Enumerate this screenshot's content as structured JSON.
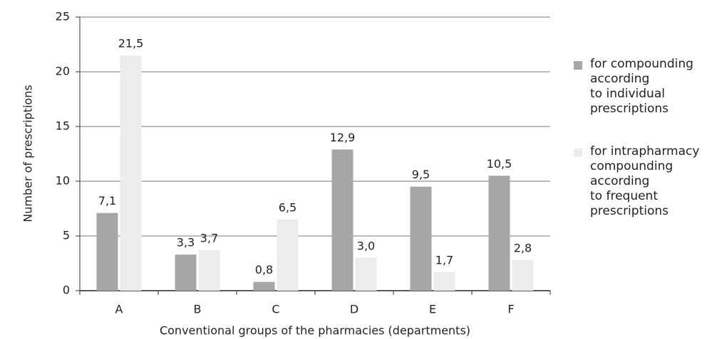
{
  "chart_data": {
    "type": "bar",
    "y_label": "Number of prescriptions",
    "x_label": "Conventional groups of the pharmacies (departments)",
    "categories": [
      "A",
      "B",
      "C",
      "D",
      "E",
      "F"
    ],
    "series": [
      {
        "name": "for compounding\naccording\nto individual\nprescriptions",
        "color": "#a6a6a6",
        "values": [
          7.1,
          3.3,
          0.8,
          12.9,
          9.5,
          10.5
        ],
        "value_labels": [
          "7,1",
          "3,3",
          "0,8",
          "12,9",
          "9,5",
          "10,5"
        ]
      },
      {
        "name": "for intrapharmacy\ncompounding\naccording\nto frequent\nprescriptions",
        "color": "#ececec",
        "values": [
          21.5,
          3.7,
          6.5,
          3.0,
          1.7,
          2.8
        ],
        "value_labels": [
          "21,5",
          "3,7",
          "6,5",
          "3,0",
          "1,7",
          "2,8"
        ]
      }
    ],
    "ylim": [
      0,
      25
    ],
    "yticks": [
      0,
      5,
      10,
      15,
      20,
      25
    ],
    "grid": true,
    "legend": "right"
  }
}
